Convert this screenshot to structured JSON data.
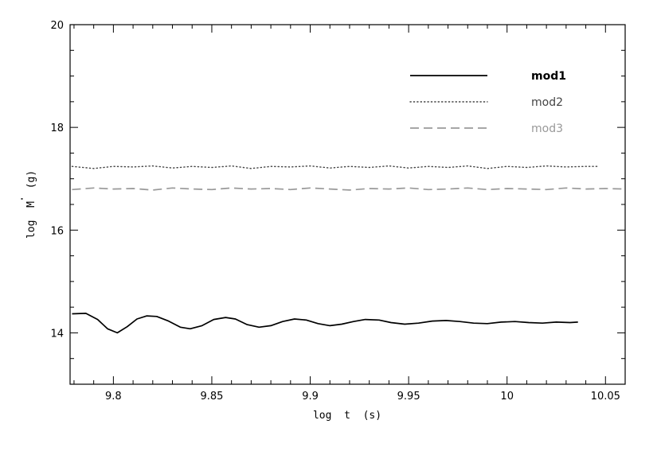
{
  "chart_data": {
    "type": "line",
    "xlabel": "log  t  (s)",
    "ylabel": "log  M  (g)",
    "ylabel_dot": "·",
    "xlim": [
      9.778,
      10.06
    ],
    "ylim": [
      13,
      20
    ],
    "x_ticks": [
      9.8,
      9.85,
      9.9,
      9.95,
      10,
      10.05
    ],
    "x_tick_labels": [
      "9.8",
      "9.85",
      "9.9",
      "9.95",
      "10",
      "10.05"
    ],
    "y_ticks": [
      14,
      16,
      18,
      20
    ],
    "y_tick_labels": [
      "14",
      "16",
      "18",
      "20"
    ],
    "legend_position": "top-right",
    "series": [
      {
        "name": "mod1",
        "color": "#000000",
        "style": "solid",
        "x": [
          9.779,
          9.786,
          9.792,
          9.797,
          9.802,
          9.807,
          9.812,
          9.817,
          9.822,
          9.828,
          9.834,
          9.839,
          9.845,
          9.851,
          9.857,
          9.862,
          9.868,
          9.874,
          9.88,
          9.886,
          9.892,
          9.898,
          9.904,
          9.91,
          9.916,
          9.922,
          9.928,
          9.935,
          9.941,
          9.948,
          9.955,
          9.962,
          9.969,
          9.976,
          9.983,
          9.99,
          9.997,
          10.004,
          10.011,
          10.018,
          10.025,
          10.032,
          10.036
        ],
        "values": [
          14.37,
          14.38,
          14.26,
          14.08,
          14.0,
          14.12,
          14.27,
          14.33,
          14.32,
          14.23,
          14.11,
          14.08,
          14.14,
          14.26,
          14.3,
          14.27,
          14.16,
          14.11,
          14.14,
          14.22,
          14.27,
          14.25,
          14.18,
          14.14,
          14.17,
          14.22,
          14.26,
          14.25,
          14.2,
          14.17,
          14.19,
          14.23,
          14.24,
          14.22,
          14.19,
          14.18,
          14.21,
          14.22,
          14.2,
          14.19,
          14.21,
          14.2,
          14.21
        ]
      },
      {
        "name": "mod2",
        "color": "#444444",
        "style": "dotted",
        "x": [
          9.779,
          9.79,
          9.8,
          9.81,
          9.82,
          9.83,
          9.84,
          9.85,
          9.86,
          9.87,
          9.88,
          9.89,
          9.9,
          9.91,
          9.92,
          9.93,
          9.94,
          9.95,
          9.96,
          9.97,
          9.98,
          9.99,
          10.0,
          10.01,
          10.02,
          10.03,
          10.04,
          10.046
        ],
        "values": [
          17.24,
          17.2,
          17.24,
          17.23,
          17.25,
          17.21,
          17.24,
          17.22,
          17.25,
          17.2,
          17.24,
          17.23,
          17.25,
          17.21,
          17.24,
          17.22,
          17.25,
          17.21,
          17.24,
          17.22,
          17.25,
          17.2,
          17.24,
          17.22,
          17.25,
          17.23,
          17.24,
          17.24
        ]
      },
      {
        "name": "mod3",
        "color": "#999999",
        "style": "dashed",
        "x": [
          9.779,
          9.79,
          9.8,
          9.81,
          9.82,
          9.83,
          9.84,
          9.85,
          9.86,
          9.87,
          9.88,
          9.89,
          9.9,
          9.91,
          9.92,
          9.93,
          9.94,
          9.95,
          9.96,
          9.97,
          9.98,
          9.99,
          10.0,
          10.01,
          10.02,
          10.03,
          10.04,
          10.05,
          10.06
        ],
        "values": [
          16.79,
          16.82,
          16.8,
          16.81,
          16.78,
          16.82,
          16.8,
          16.79,
          16.82,
          16.8,
          16.81,
          16.79,
          16.82,
          16.8,
          16.78,
          16.81,
          16.8,
          16.82,
          16.79,
          16.8,
          16.82,
          16.79,
          16.81,
          16.8,
          16.79,
          16.82,
          16.8,
          16.81,
          16.8
        ]
      }
    ]
  }
}
